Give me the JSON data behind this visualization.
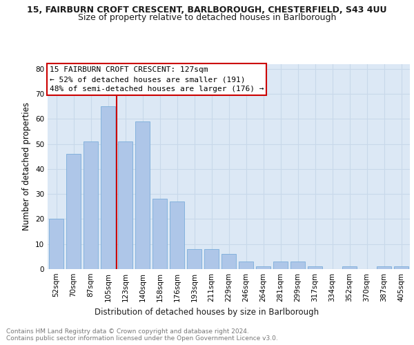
{
  "title_line1": "15, FAIRBURN CROFT CRESCENT, BARLBOROUGH, CHESTERFIELD, S43 4UU",
  "title_line2": "Size of property relative to detached houses in Barlborough",
  "xlabel": "Distribution of detached houses by size in Barlborough",
  "ylabel": "Number of detached properties",
  "categories": [
    "52sqm",
    "70sqm",
    "87sqm",
    "105sqm",
    "123sqm",
    "140sqm",
    "158sqm",
    "176sqm",
    "193sqm",
    "211sqm",
    "229sqm",
    "246sqm",
    "264sqm",
    "281sqm",
    "299sqm",
    "317sqm",
    "334sqm",
    "352sqm",
    "370sqm",
    "387sqm",
    "405sqm"
  ],
  "values": [
    20,
    46,
    51,
    65,
    51,
    59,
    28,
    27,
    8,
    8,
    6,
    3,
    1,
    3,
    3,
    1,
    0,
    1,
    0,
    1,
    1
  ],
  "bar_color": "#aec6e8",
  "bar_edge_color": "#7aadda",
  "vline_color": "#cc0000",
  "vline_pos": 3.5,
  "annotation_text": "15 FAIRBURN CROFT CRESCENT: 127sqm\n← 52% of detached houses are smaller (191)\n48% of semi-detached houses are larger (176) →",
  "annotation_box_color": "#ffffff",
  "annotation_box_edge": "#cc0000",
  "ylim": [
    0,
    82
  ],
  "yticks": [
    0,
    10,
    20,
    30,
    40,
    50,
    60,
    70,
    80
  ],
  "grid_color": "#c8d8ea",
  "background_color": "#dce8f5",
  "footer_text": "Contains HM Land Registry data © Crown copyright and database right 2024.\nContains public sector information licensed under the Open Government Licence v3.0.",
  "title_fontsize": 9,
  "subtitle_fontsize": 9,
  "axis_label_fontsize": 8.5,
  "tick_fontsize": 7.5,
  "annotation_fontsize": 8,
  "footer_fontsize": 6.5
}
